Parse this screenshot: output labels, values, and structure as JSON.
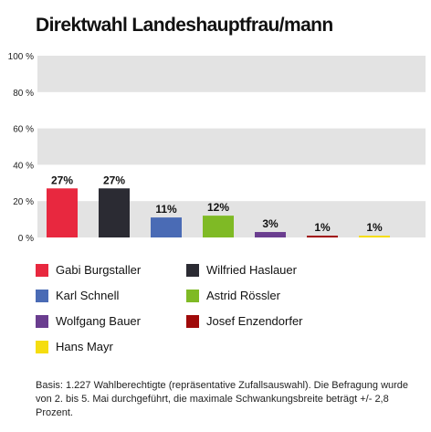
{
  "chart_data": {
    "type": "bar",
    "title": "Direktwahl Landeshauptfrau/mann",
    "categories": [
      "Gabi Burgstaller",
      "Wilfried Haslauer",
      "Karl Schnell",
      "Astrid Rössler",
      "Wolfgang Bauer",
      "Josef Enzendorfer",
      "Hans Mayr"
    ],
    "values": [
      27,
      27,
      11,
      12,
      3,
      1,
      1
    ],
    "data_labels": [
      "27%",
      "27%",
      "11%",
      "12%",
      "3%",
      "1%",
      "1%"
    ],
    "colors": [
      "#e8283f",
      "#2b2b33",
      "#4a6bb5",
      "#7fba25",
      "#6a3d8f",
      "#a00a0a",
      "#f5dd10"
    ],
    "ylim": [
      0,
      100
    ],
    "yticks": [
      0,
      20,
      40,
      60,
      80,
      100
    ],
    "ytick_labels": [
      "0 %",
      "20 %",
      "40 %",
      "60 %",
      "80 %",
      "100 %"
    ],
    "grid": "alternating bands",
    "band_color": "#e3e3e3",
    "legend_placement": "bottom",
    "xlabel": "",
    "ylabel": ""
  },
  "footnote": "Basis: 1.227 Wahlberechtigte (repräsentative Zufallsauswahl). Die Befragung wurde von 2. bis 5. Mai durchgeführt, die maximale Schwankungsbreite beträgt +/- 2,8 Prozent."
}
